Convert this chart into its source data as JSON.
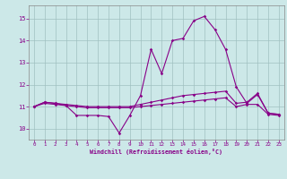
{
  "xlabel": "Windchill (Refroidissement éolien,°C)",
  "background_color": "#cce8e8",
  "grid_color": "#a0c0c0",
  "line_color": "#880088",
  "xlim": [
    -0.5,
    23.5
  ],
  "ylim": [
    9.5,
    15.6
  ],
  "yticks": [
    10,
    11,
    12,
    13,
    14,
    15
  ],
  "xticks": [
    0,
    1,
    2,
    3,
    4,
    5,
    6,
    7,
    8,
    9,
    10,
    11,
    12,
    13,
    14,
    15,
    16,
    17,
    18,
    19,
    20,
    21,
    22,
    23
  ],
  "series1_x": [
    0,
    1,
    2,
    3,
    4,
    5,
    6,
    7,
    8,
    9,
    10,
    11,
    12,
    13,
    14,
    15,
    16,
    17,
    18,
    19,
    20,
    21,
    22,
    23
  ],
  "series1_y": [
    11.0,
    11.2,
    11.15,
    11.05,
    10.6,
    10.6,
    10.6,
    10.55,
    9.8,
    10.6,
    11.5,
    13.6,
    12.5,
    14.0,
    14.1,
    14.9,
    15.1,
    14.5,
    13.6,
    11.9,
    11.15,
    11.55,
    10.7,
    10.65
  ],
  "series2_x": [
    0,
    1,
    2,
    3,
    4,
    5,
    6,
    7,
    8,
    9,
    10,
    11,
    12,
    13,
    14,
    15,
    16,
    17,
    18,
    19,
    20,
    21,
    22,
    23
  ],
  "series2_y": [
    11.0,
    11.2,
    11.15,
    11.1,
    11.05,
    11.0,
    11.0,
    11.0,
    11.0,
    11.0,
    11.1,
    11.2,
    11.3,
    11.4,
    11.5,
    11.55,
    11.6,
    11.65,
    11.7,
    11.15,
    11.2,
    11.6,
    10.7,
    10.65
  ],
  "series3_x": [
    0,
    1,
    2,
    3,
    4,
    5,
    6,
    7,
    8,
    9,
    10,
    11,
    12,
    13,
    14,
    15,
    16,
    17,
    18,
    19,
    20,
    21,
    22,
    23
  ],
  "series3_y": [
    11.0,
    11.15,
    11.1,
    11.05,
    11.0,
    10.95,
    10.95,
    10.95,
    10.95,
    10.95,
    11.0,
    11.05,
    11.1,
    11.15,
    11.2,
    11.25,
    11.3,
    11.35,
    11.4,
    11.0,
    11.1,
    11.1,
    10.65,
    10.6
  ]
}
